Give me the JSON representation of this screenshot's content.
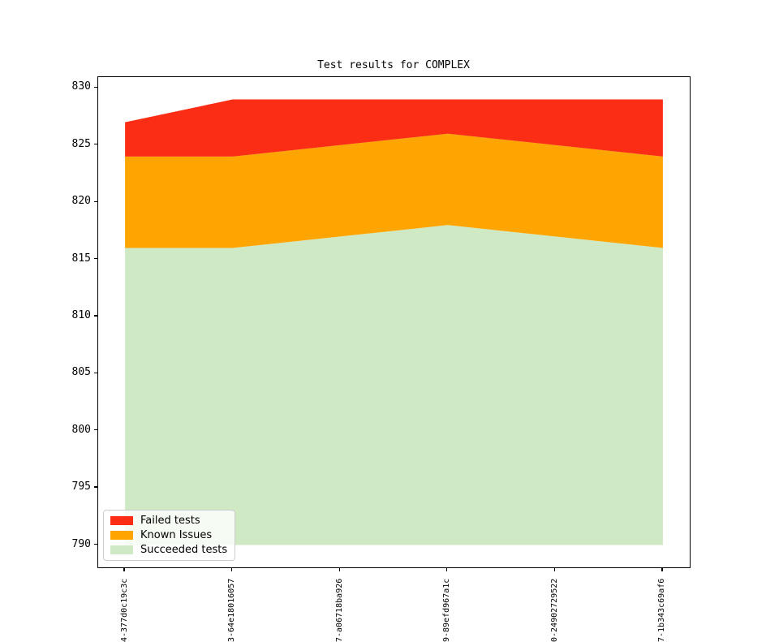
{
  "chart_data": {
    "type": "area",
    "title": "Test results for COMPLEX",
    "x": [
      "4-377d0c19c3c",
      "3-64e18016057",
      "7-a06718ba926",
      "9-89efd967a1c",
      "0-24902729522",
      "7-1b343c69af6"
    ],
    "baseline": 790,
    "xlim": [
      -0.25,
      5.25
    ],
    "ylim": [
      788.05,
      830.95
    ],
    "yticks": [
      790,
      795,
      800,
      805,
      810,
      815,
      820,
      825,
      830
    ],
    "grid": false,
    "series": [
      {
        "name": "Succeeded tests",
        "color": "#cfe9c4",
        "tops": [
          816,
          816,
          817,
          818,
          817,
          816
        ],
        "values": [
          26,
          26,
          27,
          28,
          27,
          26
        ]
      },
      {
        "name": "Known Issues",
        "color": "#ffa502",
        "tops": [
          824,
          824,
          825,
          826,
          825,
          824
        ],
        "values": [
          8,
          8,
          8,
          8,
          8,
          8
        ]
      },
      {
        "name": "Failed tests",
        "color": "#fc2d15",
        "tops": [
          827,
          829,
          829,
          829,
          829,
          829
        ],
        "values": [
          3,
          5,
          4,
          3,
          4,
          5
        ]
      }
    ],
    "legend": {
      "position": "lower left",
      "entries": [
        {
          "label": "Failed tests",
          "color": "#fc2d15"
        },
        {
          "label": "Known Issues",
          "color": "#ffa502"
        },
        {
          "label": "Succeeded tests",
          "color": "#cfe9c4"
        }
      ]
    }
  }
}
